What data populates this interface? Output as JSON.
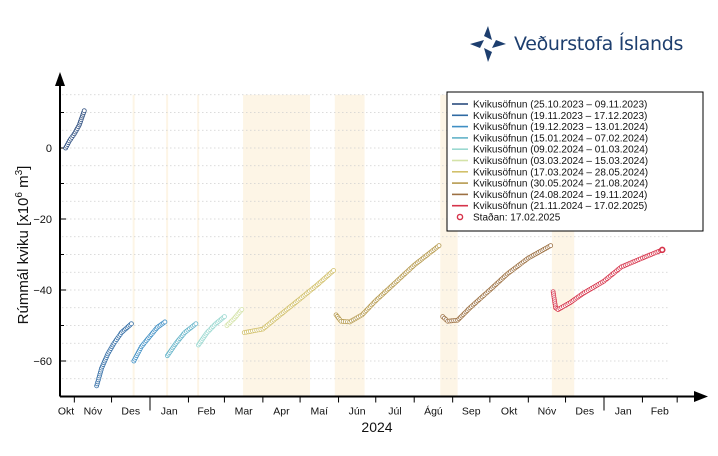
{
  "logo": {
    "text": "Veðurstofa Íslands"
  },
  "chart_data": {
    "type": "scatter",
    "title": "",
    "xlabel": "2024",
    "ylabel": "Rúmmál kviku [x10⁶ m³]",
    "ylabel_main": "Rúmmál kviku [x10",
    "ylabel_exp": "6",
    "ylabel_unit": " m",
    "ylabel_exp2": "3",
    "ylabel_end": "]",
    "ylim": [
      -70,
      15
    ],
    "yticks": [
      0,
      -20,
      -40,
      -60
    ],
    "xlim": [
      "2023-10-01",
      "2025-02-28"
    ],
    "xtick_labels": [
      "Okt",
      "Nóv",
      "Des",
      "Jan",
      "Feb",
      "Mar",
      "Apr",
      "Maí",
      "Jún",
      "Júl",
      "Ágú",
      "Sep",
      "Okt",
      "Nóv",
      "Des",
      "Jan",
      "Feb"
    ],
    "grid": "horizontal dotted every 5",
    "legend_placement": "top-right",
    "shaded_periods": [
      [
        "2023-12-18",
        "2023-12-19"
      ],
      [
        "2024-01-14",
        "2024-01-15"
      ],
      [
        "2024-02-08",
        "2024-02-09"
      ],
      [
        "2024-03-16",
        "2024-05-09"
      ],
      [
        "2024-05-29",
        "2024-06-22"
      ],
      [
        "2024-08-22",
        "2024-09-05"
      ],
      [
        "2024-11-20",
        "2024-12-08"
      ]
    ],
    "series": [
      {
        "name": "Kvikusöfnun (25.10.2023 – 09.11.2023)",
        "color": "#2b4c7e",
        "points": [
          [
            "2023-10-25",
            0
          ],
          [
            "2023-10-28",
            2
          ],
          [
            "2023-11-01",
            4
          ],
          [
            "2023-11-05",
            6.5
          ],
          [
            "2023-11-09",
            10.5
          ]
        ]
      },
      {
        "name": "Kvikusöfnun (19.11.2023 – 17.12.2023)",
        "color": "#2f6aa3",
        "points": [
          [
            "2023-11-19",
            -67
          ],
          [
            "2023-11-23",
            -62
          ],
          [
            "2023-11-28",
            -58
          ],
          [
            "2023-12-03",
            -55
          ],
          [
            "2023-12-09",
            -52
          ],
          [
            "2023-12-17",
            -49.5
          ]
        ]
      },
      {
        "name": "Kvikusöfnun (19.12.2023 – 13.01.2024)",
        "color": "#3f8fc4",
        "points": [
          [
            "2023-12-19",
            -60
          ],
          [
            "2023-12-25",
            -56
          ],
          [
            "2024-01-01",
            -53
          ],
          [
            "2024-01-07",
            -50.5
          ],
          [
            "2024-01-13",
            -49
          ]
        ]
      },
      {
        "name": "Kvikusöfnun (15.01.2024 – 07.02.2024)",
        "color": "#63b3c8",
        "points": [
          [
            "2024-01-15",
            -58.5
          ],
          [
            "2024-01-22",
            -55
          ],
          [
            "2024-01-29",
            -52
          ],
          [
            "2024-02-07",
            -49.5
          ]
        ]
      },
      {
        "name": "Kvikusöfnun (09.02.2024 – 01.03.2024)",
        "color": "#9ad8d0",
        "points": [
          [
            "2024-02-09",
            -55.5
          ],
          [
            "2024-02-16",
            -52
          ],
          [
            "2024-02-23",
            -49.5
          ],
          [
            "2024-03-01",
            -47.5
          ]
        ]
      },
      {
        "name": "Kvikusöfnun (03.03.2024 – 15.03.2024)",
        "color": "#d4e3a8",
        "points": [
          [
            "2024-03-03",
            -50
          ],
          [
            "2024-03-09",
            -48
          ],
          [
            "2024-03-15",
            -45.5
          ]
        ]
      },
      {
        "name": "Kvikusöfnun (17.03.2024 – 28.05.2024)",
        "color": "#d2c06a",
        "points": [
          [
            "2024-03-17",
            -52
          ],
          [
            "2024-04-01",
            -51
          ],
          [
            "2024-04-15",
            -47
          ],
          [
            "2024-05-01",
            -42.5
          ],
          [
            "2024-05-15",
            -38.5
          ],
          [
            "2024-05-28",
            -34.5
          ]
        ]
      },
      {
        "name": "Kvikusöfnun (30.05.2024 – 21.08.2024)",
        "color": "#b69a4e",
        "points": [
          [
            "2024-05-30",
            -47
          ],
          [
            "2024-06-03",
            -48.8
          ],
          [
            "2024-06-10",
            -49
          ],
          [
            "2024-06-20",
            -47
          ],
          [
            "2024-07-01",
            -43
          ],
          [
            "2024-07-15",
            -38.5
          ],
          [
            "2024-08-01",
            -33
          ],
          [
            "2024-08-21",
            -27.5
          ]
        ]
      },
      {
        "name": "Kvikusöfnun (24.08.2024 – 19.11.2024)",
        "color": "#9c7042",
        "points": [
          [
            "2024-08-24",
            -47.5
          ],
          [
            "2024-08-28",
            -48.8
          ],
          [
            "2024-09-05",
            -48.5
          ],
          [
            "2024-09-15",
            -45
          ],
          [
            "2024-10-01",
            -40
          ],
          [
            "2024-10-15",
            -35.5
          ],
          [
            "2024-11-01",
            -31
          ],
          [
            "2024-11-19",
            -27.5
          ]
        ]
      },
      {
        "name": "Kvikusöfnun (21.11.2024 – 17.02.2025)",
        "color": "#d6334a",
        "points": [
          [
            "2024-11-21",
            -40.5
          ],
          [
            "2024-11-23",
            -45
          ],
          [
            "2024-11-25",
            -45.5
          ],
          [
            "2024-12-05",
            -43.5
          ],
          [
            "2024-12-15",
            -41
          ],
          [
            "2025-01-01",
            -37.5
          ],
          [
            "2025-01-15",
            -33.5
          ],
          [
            "2025-02-01",
            -31
          ],
          [
            "2025-02-17",
            -28.7
          ]
        ]
      }
    ],
    "current": {
      "label": "Staðan: 17.02.2025",
      "date": "2025-02-17",
      "value": -28.7,
      "color": "#d6334a"
    }
  }
}
